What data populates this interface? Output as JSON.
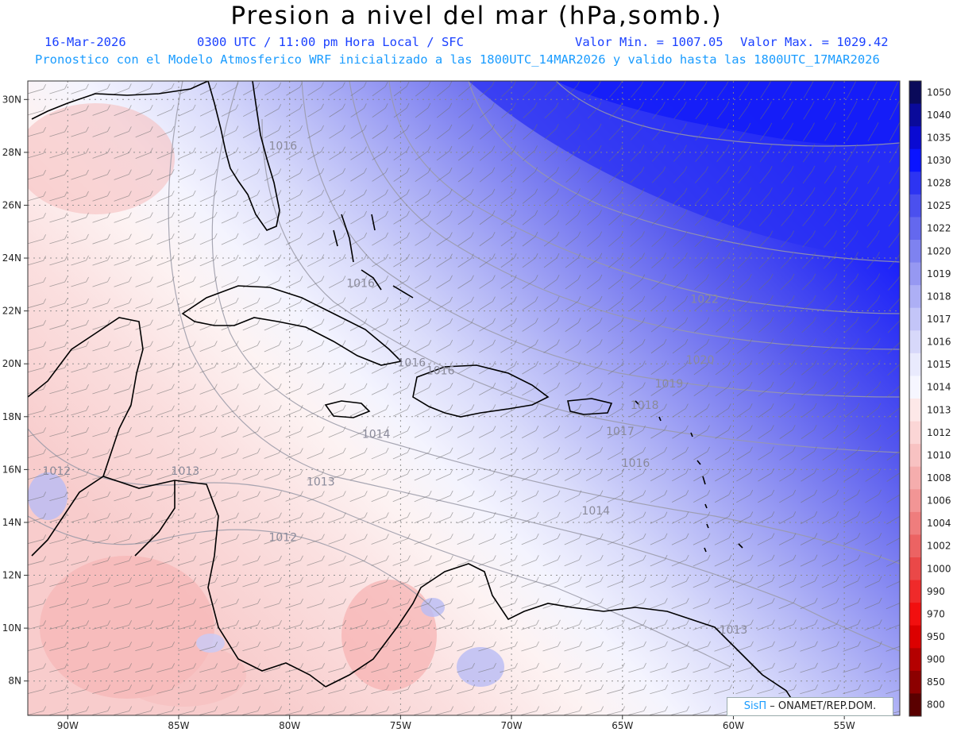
{
  "header": {
    "title": "Presion a nivel del mar (hPa,somb.)",
    "date": "16-Mar-2026",
    "time": "0300 UTC / 11:00 pm Hora Local / SFC",
    "min_label": "Valor Min. = 1007.05",
    "max_label": "Valor Max. = 1029.42",
    "forecast_note": "Pronostico con el Modelo Atmosferico WRF inicializado a las 1800UTC_14MAR2026 y valido hasta las  1800UTC_17MAR2026"
  },
  "map": {
    "lat_labels": [
      "30N",
      "28N",
      "26N",
      "24N",
      "22N",
      "20N",
      "18N",
      "16N",
      "14N",
      "12N",
      "10N",
      "8N"
    ],
    "lat_values": [
      30,
      28,
      26,
      24,
      22,
      20,
      18,
      16,
      14,
      12,
      10,
      8
    ],
    "lon_labels": [
      "90W",
      "85W",
      "80W",
      "75W",
      "70W",
      "65W",
      "60W",
      "55W"
    ],
    "lon_values": [
      -90,
      -85,
      -80,
      -75,
      -70,
      -65,
      -60,
      -55
    ],
    "lat_range": [
      6.7,
      30.7
    ],
    "lon_range": [
      -91.8,
      -52.5
    ],
    "contour_labels": [
      {
        "text": "1016",
        "lat": 28.1,
        "lon": -80.3
      },
      {
        "text": "1016",
        "lat": 22.9,
        "lon": -76.8
      },
      {
        "text": "1016",
        "lat": 19.9,
        "lon": -74.5
      },
      {
        "text": "1016",
        "lat": 19.6,
        "lon": -73.2
      },
      {
        "text": "1022",
        "lat": 22.3,
        "lon": -61.3
      },
      {
        "text": "1020",
        "lat": 20.0,
        "lon": -61.5
      },
      {
        "text": "1019",
        "lat": 19.1,
        "lon": -62.9
      },
      {
        "text": "1018",
        "lat": 18.3,
        "lon": -64.0
      },
      {
        "text": "1017",
        "lat": 17.3,
        "lon": -65.1
      },
      {
        "text": "1016",
        "lat": 16.1,
        "lon": -64.4
      },
      {
        "text": "1014",
        "lat": 17.2,
        "lon": -76.1
      },
      {
        "text": "1014",
        "lat": 14.3,
        "lon": -66.2
      },
      {
        "text": "1013",
        "lat": 15.4,
        "lon": -78.6
      },
      {
        "text": "1013",
        "lat": 15.8,
        "lon": -84.7
      },
      {
        "text": "1013",
        "lat": 9.8,
        "lon": -60.0
      },
      {
        "text": "1012",
        "lat": 15.8,
        "lon": -90.5
      },
      {
        "text": "1012",
        "lat": 13.3,
        "lon": -80.3
      }
    ]
  },
  "colorbar": {
    "levels": [
      "1050",
      "1040",
      "1035",
      "1030",
      "1028",
      "1025",
      "1022",
      "1020",
      "1019",
      "1018",
      "1017",
      "1016",
      "1015",
      "1014",
      "1013",
      "1012",
      "1010",
      "1008",
      "1006",
      "1004",
      "1002",
      "1000",
      "990",
      "970",
      "950",
      "900",
      "850",
      "800"
    ],
    "colors": [
      "#0a0a5a",
      "#0a0a9a",
      "#0a0ad2",
      "#0a14ff",
      "#2d34f2",
      "#4b50ee",
      "#6468ee",
      "#7e82f0",
      "#9698f2",
      "#adaff5",
      "#c3c5f8",
      "#d7d8fa",
      "#e9eafd",
      "#f6f6ff",
      "#fde8e8",
      "#fbd6d6",
      "#f8c2c2",
      "#f5adad",
      "#f29595",
      "#ef7d7d",
      "#ec6363",
      "#ea4848",
      "#ef2a2a",
      "#f20f0f",
      "#dc0000",
      "#b40000",
      "#8c0000",
      "#5a0000"
    ]
  },
  "credit": {
    "brand": "SisΠ",
    "text": "– ONAMET/REP.DOM."
  }
}
